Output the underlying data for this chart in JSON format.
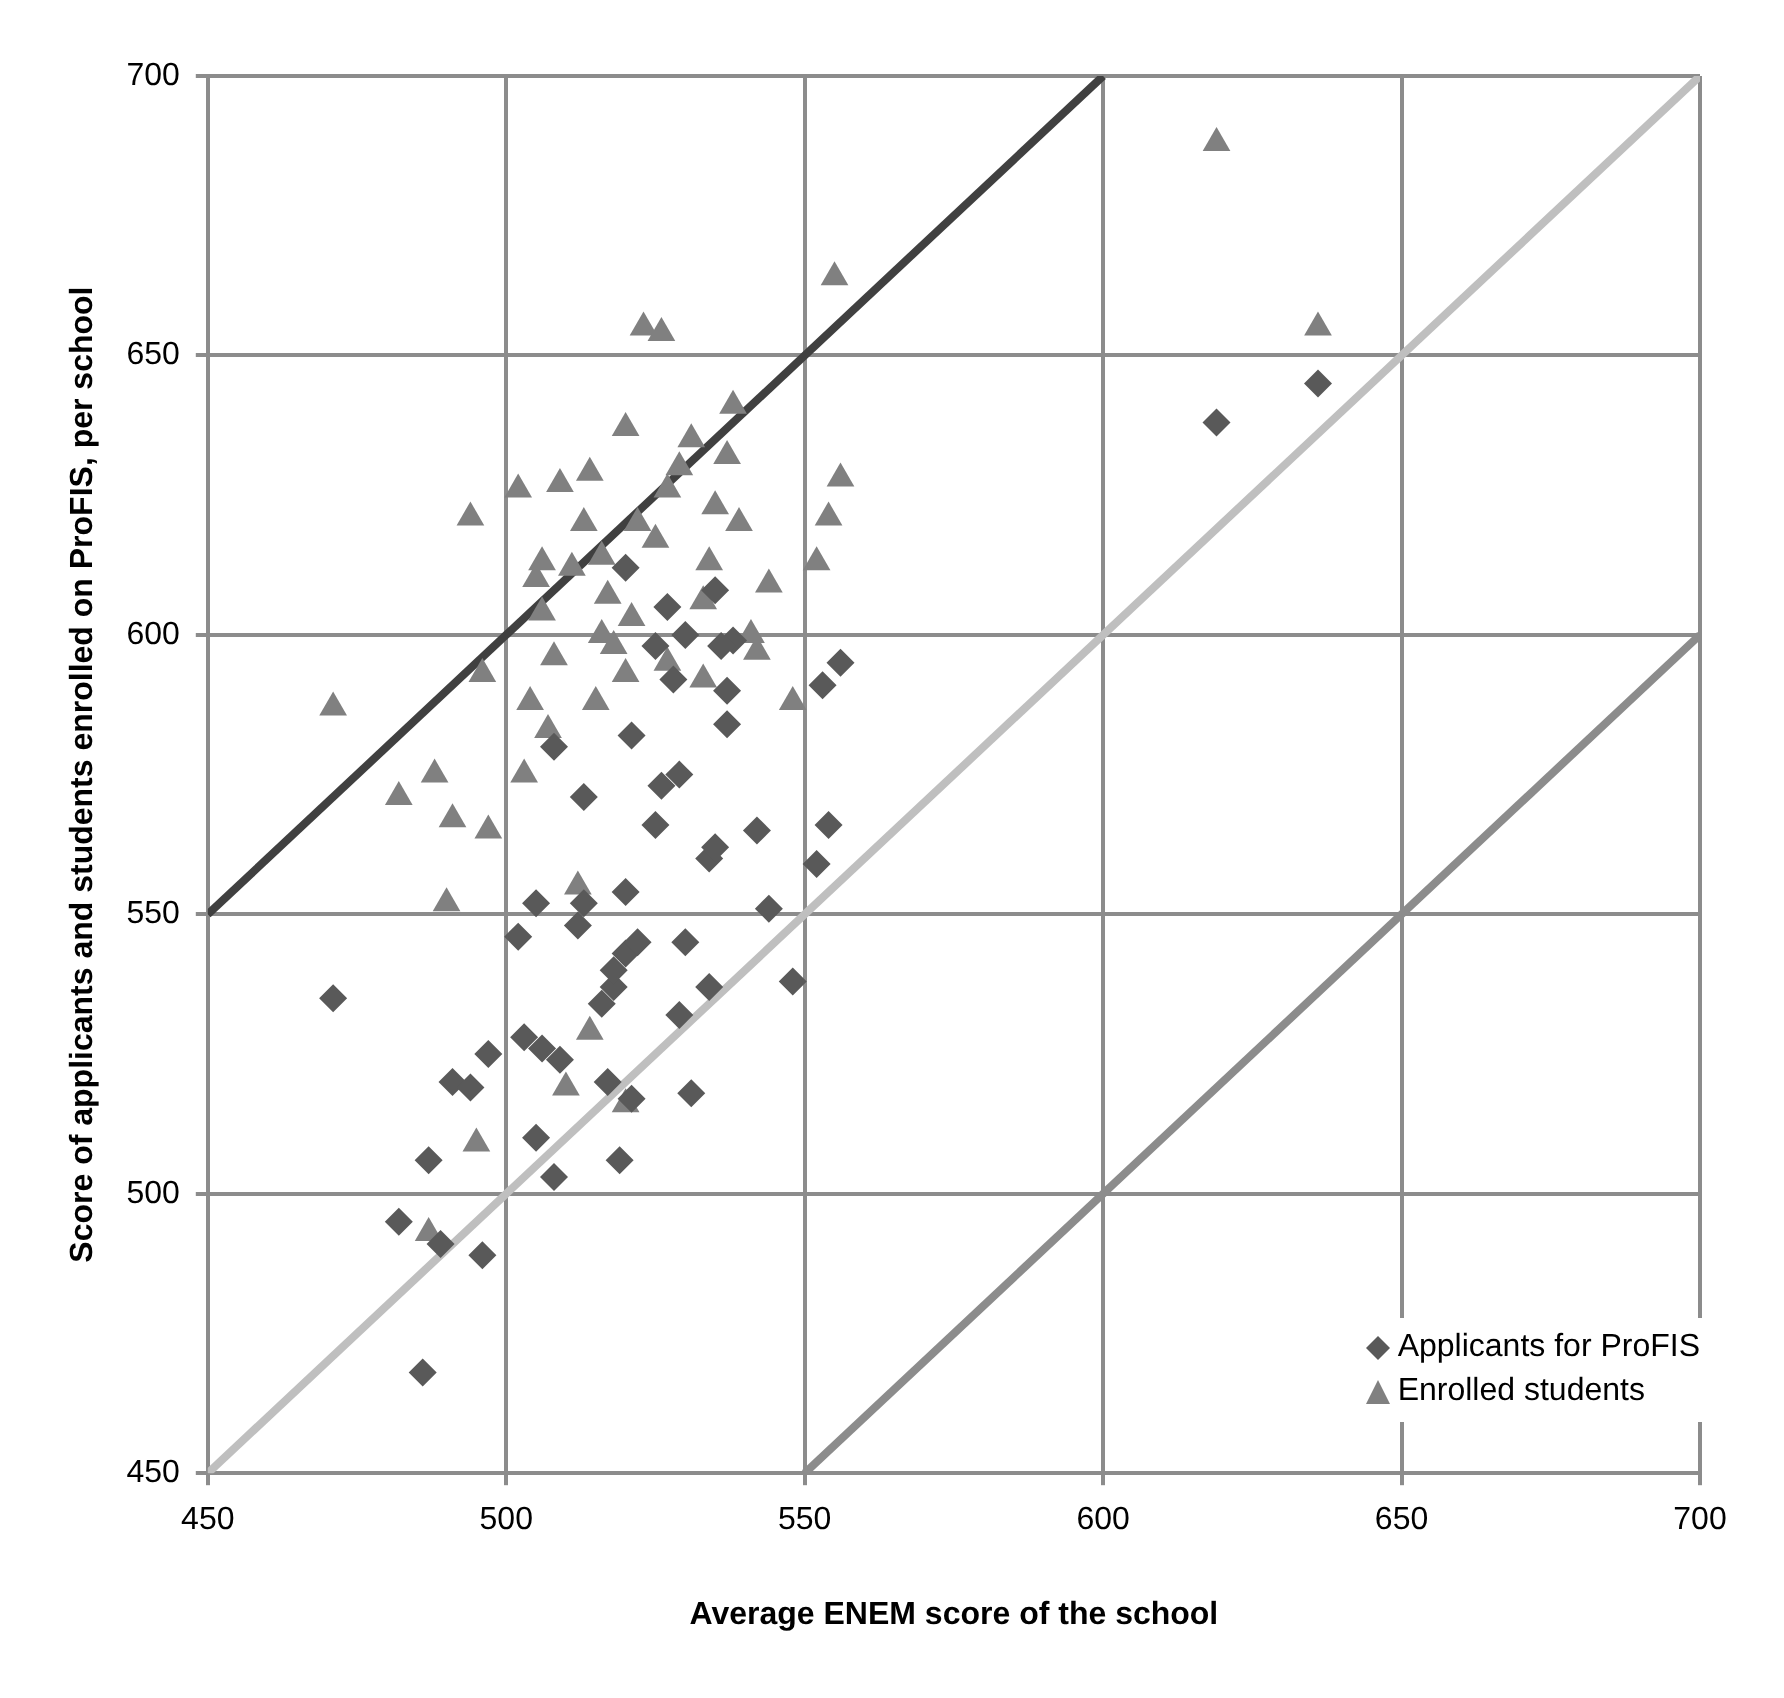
{
  "chart_data": {
    "type": "scatter",
    "xlabel": "Average ENEM score of the school",
    "ylabel": "Score of applicants and students enrolled on ProFIS, per school",
    "xlim": [
      450,
      700
    ],
    "ylim": [
      450,
      700
    ],
    "xticks": [
      450,
      500,
      550,
      600,
      650,
      700
    ],
    "yticks": [
      450,
      500,
      550,
      600,
      650,
      700
    ],
    "grid": true,
    "legend": "bottom right",
    "series": [
      {
        "name": "Applicants for ProFIS",
        "marker": "diamond",
        "color": "#595959",
        "x": [
          486,
          471,
          482,
          487,
          489,
          491,
          494,
          496,
          497,
          502,
          503,
          505,
          505,
          506,
          508,
          508,
          509,
          512,
          513,
          513,
          516,
          517,
          518,
          518,
          519,
          520,
          520,
          521,
          521,
          522,
          525,
          526,
          527,
          528,
          529,
          529,
          530,
          531,
          534,
          534,
          535,
          537,
          537,
          538,
          542,
          544,
          548,
          552,
          553,
          554,
          556,
          619,
          636,
          520,
          525,
          530,
          535,
          536
        ],
        "values": [
          468,
          535,
          495,
          506,
          491,
          520,
          519,
          489,
          525,
          546,
          528,
          552,
          510,
          526,
          503,
          580,
          524,
          548,
          571,
          552,
          534,
          520,
          537,
          540,
          506,
          554,
          543,
          517,
          582,
          545,
          566,
          573,
          605,
          592,
          532,
          575,
          545,
          518,
          537,
          560,
          562,
          590,
          584,
          599,
          565,
          551,
          538,
          559,
          591,
          566,
          595,
          638,
          645,
          612,
          598,
          600,
          608,
          598
        ]
      },
      {
        "name": "Enrolled students",
        "marker": "triangle",
        "color": "#808080",
        "x": [
          471,
          482,
          488,
          490,
          491,
          494,
          496,
          497,
          495,
          487,
          502,
          503,
          504,
          505,
          506,
          507,
          508,
          509,
          510,
          512,
          513,
          514,
          515,
          516,
          517,
          518,
          520,
          520,
          521,
          523,
          525,
          526,
          527,
          529,
          531,
          533,
          534,
          535,
          537,
          538,
          539,
          541,
          542,
          544,
          548,
          552,
          554,
          555,
          556,
          619,
          636,
          514,
          520,
          522,
          516,
          511,
          527,
          533,
          506
        ],
        "values": [
          587,
          571,
          575,
          552,
          567,
          621,
          593,
          565,
          509,
          493,
          626,
          575,
          588,
          610,
          604,
          583,
          596,
          627,
          519,
          555,
          620,
          629,
          588,
          600,
          607,
          598,
          637,
          593,
          603,
          655,
          617,
          654,
          595,
          630,
          635,
          606,
          613,
          623,
          632,
          641,
          620,
          600,
          597,
          609,
          588,
          613,
          621,
          664,
          628,
          688,
          655,
          529,
          516,
          620,
          614,
          612,
          626,
          592,
          613
        ]
      },
      {
        "type": "line",
        "marker": "none",
        "line_style": "solid",
        "color": "#404040",
        "x": [
          450,
          600
        ],
        "values": [
          550,
          700
        ]
      },
      {
        "type": "line",
        "marker": "none",
        "line_style": "solid",
        "color": "#bfbfbf",
        "x": [
          450,
          700
        ],
        "values": [
          450,
          700
        ]
      },
      {
        "type": "line",
        "marker": "none",
        "line_style": "solid",
        "color": "#8c8c8c",
        "x": [
          550,
          700
        ],
        "values": [
          450,
          600
        ]
      }
    ]
  }
}
